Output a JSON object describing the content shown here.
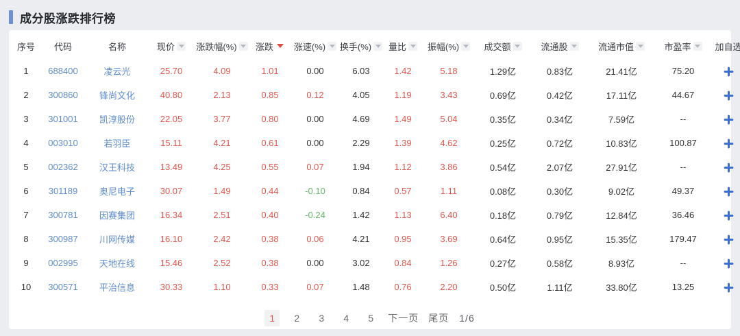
{
  "title": "成分股涨跌排行榜",
  "colors": {
    "accent_bar": "#6b90d4",
    "link_blue": "#5e8cce",
    "up_red": "#e2574d",
    "down_green": "#66b86a",
    "neutral_dark": "#333333",
    "plus_blue": "#3a6ed0",
    "active_sort_red": "#df4b3f",
    "page_bg": "#ebedf0"
  },
  "table": {
    "columns": [
      {
        "key": "seq",
        "label": "序号",
        "sort": "none",
        "cls": "dark"
      },
      {
        "key": "code",
        "label": "代码",
        "sort": "none",
        "cls": "link"
      },
      {
        "key": "name",
        "label": "名称",
        "sort": "none",
        "cls": "link"
      },
      {
        "key": "price",
        "label": "现价",
        "sort": "inactive",
        "cls": "up"
      },
      {
        "key": "change_pct",
        "label": "涨跌幅(%)",
        "sort": "inactive",
        "cls": "up"
      },
      {
        "key": "change",
        "label": "涨跌",
        "sort": "active",
        "cls": "up"
      },
      {
        "key": "speed",
        "label": "涨速(%)",
        "sort": "inactive",
        "cls": "dynamic"
      },
      {
        "key": "turnover",
        "label": "换手(%)",
        "sort": "inactive",
        "cls": "dark"
      },
      {
        "key": "volume_ratio",
        "label": "量比",
        "sort": "inactive",
        "cls": "up"
      },
      {
        "key": "amplitude",
        "label": "振幅(%)",
        "sort": "inactive",
        "cls": "up"
      },
      {
        "key": "amount",
        "label": "成交额",
        "sort": "inactive",
        "cls": "dark"
      },
      {
        "key": "float_shares",
        "label": "流通股",
        "sort": "inactive",
        "cls": "dark"
      },
      {
        "key": "float_cap",
        "label": "流通市值",
        "sort": "inactive",
        "cls": "dark"
      },
      {
        "key": "pe",
        "label": "市盈率",
        "sort": "inactive",
        "cls": "dark"
      },
      {
        "key": "add",
        "label": "加自选",
        "sort": "none",
        "cls": "add"
      }
    ],
    "rows": [
      {
        "seq": "1",
        "code": "688400",
        "name": "凌云光",
        "price": "25.70",
        "change_pct": "4.09",
        "change": "1.01",
        "speed": "0.00",
        "speed_dir": "flat",
        "turnover": "6.03",
        "volume_ratio": "1.42",
        "amplitude": "5.18",
        "amount": "1.29亿",
        "float_shares": "0.83亿",
        "float_cap": "21.41亿",
        "pe": "75.20"
      },
      {
        "seq": "2",
        "code": "300860",
        "name": "锋尚文化",
        "price": "40.80",
        "change_pct": "2.13",
        "change": "0.85",
        "speed": "0.12",
        "speed_dir": "up",
        "turnover": "4.05",
        "volume_ratio": "1.19",
        "amplitude": "3.43",
        "amount": "0.69亿",
        "float_shares": "0.42亿",
        "float_cap": "17.11亿",
        "pe": "44.67"
      },
      {
        "seq": "3",
        "code": "301001",
        "name": "凯淳股份",
        "price": "22.05",
        "change_pct": "3.77",
        "change": "0.80",
        "speed": "0.00",
        "speed_dir": "flat",
        "turnover": "4.69",
        "volume_ratio": "1.49",
        "amplitude": "5.04",
        "amount": "0.35亿",
        "float_shares": "0.34亿",
        "float_cap": "7.59亿",
        "pe": "--"
      },
      {
        "seq": "4",
        "code": "003010",
        "name": "若羽臣",
        "price": "15.11",
        "change_pct": "4.21",
        "change": "0.61",
        "speed": "0.00",
        "speed_dir": "flat",
        "turnover": "2.29",
        "volume_ratio": "1.39",
        "amplitude": "4.62",
        "amount": "0.25亿",
        "float_shares": "0.72亿",
        "float_cap": "10.83亿",
        "pe": "100.87"
      },
      {
        "seq": "5",
        "code": "002362",
        "name": "汉王科技",
        "price": "13.49",
        "change_pct": "4.25",
        "change": "0.55",
        "speed": "0.07",
        "speed_dir": "up",
        "turnover": "1.94",
        "volume_ratio": "1.12",
        "amplitude": "3.86",
        "amount": "0.54亿",
        "float_shares": "2.07亿",
        "float_cap": "27.91亿",
        "pe": "--"
      },
      {
        "seq": "6",
        "code": "301189",
        "name": "奥尼电子",
        "price": "30.07",
        "change_pct": "1.49",
        "change": "0.44",
        "speed": "-0.10",
        "speed_dir": "down",
        "turnover": "0.84",
        "volume_ratio": "0.57",
        "amplitude": "1.11",
        "amount": "0.08亿",
        "float_shares": "0.30亿",
        "float_cap": "9.02亿",
        "pe": "49.37"
      },
      {
        "seq": "7",
        "code": "300781",
        "name": "因赛集团",
        "price": "16.34",
        "change_pct": "2.51",
        "change": "0.40",
        "speed": "-0.24",
        "speed_dir": "down",
        "turnover": "1.42",
        "volume_ratio": "1.13",
        "amplitude": "6.40",
        "amount": "0.18亿",
        "float_shares": "0.79亿",
        "float_cap": "12.84亿",
        "pe": "36.46"
      },
      {
        "seq": "8",
        "code": "300987",
        "name": "川网传媒",
        "price": "16.10",
        "change_pct": "2.42",
        "change": "0.38",
        "speed": "0.06",
        "speed_dir": "up",
        "turnover": "4.21",
        "volume_ratio": "0.95",
        "amplitude": "3.69",
        "amount": "0.64亿",
        "float_shares": "0.95亿",
        "float_cap": "15.35亿",
        "pe": "179.47"
      },
      {
        "seq": "9",
        "code": "002995",
        "name": "天地在线",
        "price": "15.46",
        "change_pct": "2.52",
        "change": "0.38",
        "speed": "0.00",
        "speed_dir": "flat",
        "turnover": "3.02",
        "volume_ratio": "0.84",
        "amplitude": "1.26",
        "amount": "0.27亿",
        "float_shares": "0.58亿",
        "float_cap": "8.93亿",
        "pe": "--"
      },
      {
        "seq": "10",
        "code": "300571",
        "name": "平治信息",
        "price": "30.33",
        "change_pct": "1.10",
        "change": "0.33",
        "speed": "0.07",
        "speed_dir": "up",
        "turnover": "1.48",
        "volume_ratio": "0.76",
        "amplitude": "2.20",
        "amount": "0.50亿",
        "float_shares": "1.11亿",
        "float_cap": "33.80亿",
        "pe": "13.25"
      }
    ]
  },
  "pagination": {
    "pages": [
      "1",
      "2",
      "3",
      "4",
      "5"
    ],
    "active_page": "1",
    "next_label": "下一页",
    "last_label": "尾页",
    "indicator": "1/6"
  }
}
